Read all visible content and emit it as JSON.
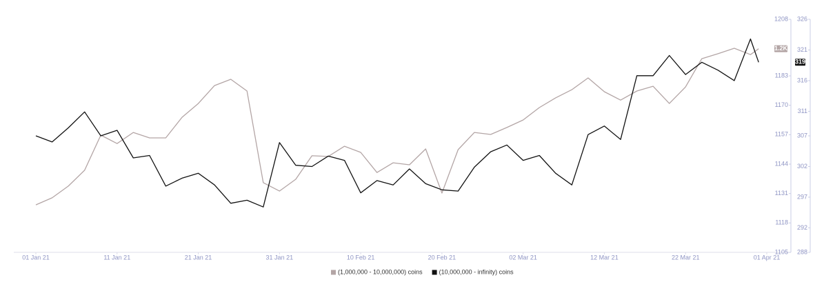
{
  "chart_data": {
    "type": "line",
    "x": [
      "2021-01-01",
      "2021-01-03",
      "2021-01-05",
      "2021-01-07",
      "2021-01-09",
      "2021-01-11",
      "2021-01-13",
      "2021-01-15",
      "2021-01-17",
      "2021-01-19",
      "2021-01-21",
      "2021-01-23",
      "2021-01-25",
      "2021-01-27",
      "2021-01-29",
      "2021-01-31",
      "2021-02-02",
      "2021-02-04",
      "2021-02-06",
      "2021-02-08",
      "2021-02-10",
      "2021-02-12",
      "2021-02-14",
      "2021-02-16",
      "2021-02-18",
      "2021-02-20",
      "2021-02-22",
      "2021-02-24",
      "2021-02-26",
      "2021-02-28",
      "2021-03-02",
      "2021-03-04",
      "2021-03-06",
      "2021-03-08",
      "2021-03-10",
      "2021-03-12",
      "2021-03-14",
      "2021-03-16",
      "2021-03-18",
      "2021-03-20",
      "2021-03-22",
      "2021-03-24",
      "2021-03-26",
      "2021-03-28",
      "2021-03-30",
      "2021-03-31"
    ],
    "series": [
      {
        "name": "(1,000,000 - 10,000,000) coins",
        "color": "#b3a5a5",
        "axis": "y",
        "values": [
          1126.0,
          1129.1,
          1134.3,
          1141.3,
          1156.8,
          1153.1,
          1158.0,
          1155.6,
          1155.6,
          1164.7,
          1170.8,
          1178.7,
          1181.5,
          1176.3,
          1135.8,
          1132.1,
          1137.3,
          1147.7,
          1147.4,
          1151.9,
          1149.2,
          1140.3,
          1144.6,
          1143.7,
          1150.7,
          1131.2,
          1150.4,
          1158.0,
          1157.1,
          1160.2,
          1163.5,
          1169.0,
          1173.3,
          1176.9,
          1182.1,
          1176.0,
          1172.3,
          1176.3,
          1178.4,
          1170.8,
          1178.1,
          1190.6,
          1192.8,
          1195.2,
          1192.4,
          1195.0
        ],
        "last_label": "1.2K"
      },
      {
        "name": "(10,000,000 - infinity) coins",
        "color": "#111111",
        "axis": "y2",
        "values": [
          307.0,
          306.0,
          308.3,
          310.9,
          307.0,
          307.9,
          303.4,
          303.8,
          298.8,
          300.1,
          300.9,
          299.0,
          296.0,
          296.5,
          295.4,
          305.9,
          302.2,
          302.0,
          303.7,
          303.0,
          297.7,
          299.7,
          299.0,
          301.6,
          299.2,
          298.2,
          298.0,
          301.9,
          304.4,
          305.5,
          303.0,
          303.8,
          300.9,
          299.0,
          307.2,
          308.6,
          306.4,
          316.8,
          316.8,
          320.1,
          317.0,
          319.0,
          317.7,
          316.0,
          322.8,
          319.0
        ],
        "last_label": "319"
      }
    ],
    "xticks": [
      {
        "value": "2021-01-01",
        "label": "01 Jan 21"
      },
      {
        "value": "2021-01-11",
        "label": "11 Jan 21"
      },
      {
        "value": "2021-01-21",
        "label": "21 Jan 21"
      },
      {
        "value": "2021-01-31",
        "label": "31 Jan 21"
      },
      {
        "value": "2021-02-10",
        "label": "10 Feb 21"
      },
      {
        "value": "2021-02-20",
        "label": "20 Feb 21"
      },
      {
        "value": "2021-03-02",
        "label": "02 Mar 21"
      },
      {
        "value": "2021-03-12",
        "label": "12 Mar 21"
      },
      {
        "value": "2021-03-22",
        "label": "22 Mar 21"
      },
      {
        "value": "2021-04-01",
        "label": "01 Apr 21"
      }
    ],
    "ylim": [
      1105,
      1208
    ],
    "yticks": [
      1105,
      1118,
      1131,
      1144,
      1157,
      1170,
      1183,
      1208
    ],
    "y2lim": [
      288,
      326
    ],
    "y2ticks": [
      288,
      292,
      297,
      302,
      307,
      311,
      316,
      321,
      326
    ],
    "legend": "bottom"
  }
}
